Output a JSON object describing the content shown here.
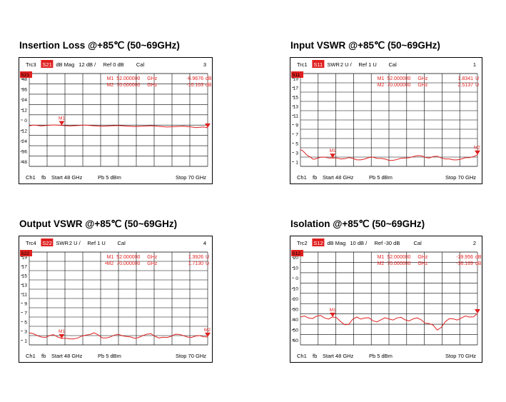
{
  "panels": [
    {
      "title": "Insertion Loss @+85℃ (50~69GHz)",
      "trace": "Trc3",
      "param": "S21",
      "format": "dB Mag",
      "scale": "12 dB /",
      "ref": "Ref 0 dB",
      "cal": "Cal",
      "num": "3",
      "ref_badge": "S21",
      "markers": [
        {
          "label": "M1",
          "freq": "52.000000",
          "unit": "GHz",
          "value": "-6.9676",
          "vunit": "dB"
        },
        {
          "label": "M2",
          "freq": "70.000000",
          "unit": "GHz",
          "value": "-10.103",
          "vunit": "dB"
        }
      ],
      "ticks": [
        "48",
        "36",
        "24",
        "12",
        "0",
        "-12",
        "-24",
        "-36",
        "-48"
      ],
      "footer": {
        "ch": "Ch1",
        "fb": "fb",
        "start": "Start  48 GHz",
        "pb": "Pb   5 dBm",
        "stop": "Stop  70 GHz"
      },
      "marker_flags": [
        "M1"
      ],
      "colors": {
        "trace": "#e02020",
        "badge": "#e02020",
        "grid": "#000000"
      }
    },
    {
      "title": "Input VSWR @+85℃ (50~69GHz)",
      "trace": "Trc1",
      "param": "S11",
      "format": "SWR",
      "scale": "2 U /",
      "ref": "Ref 1 U",
      "cal": "Cal",
      "num": "1",
      "ref_badge": "S11",
      "markers": [
        {
          "label": "M1",
          "freq": "52.000000",
          "unit": "GHz",
          "value": "1.8341",
          "vunit": "U"
        },
        {
          "label": "M2",
          "freq": "70.000000",
          "unit": "GHz",
          "value": "2.5137",
          "vunit": "U"
        }
      ],
      "ticks": [
        "19",
        "17",
        "15",
        "13",
        "11",
        "9",
        "7",
        "5",
        "3",
        "1"
      ],
      "footer": {
        "ch": "Ch1",
        "fb": "fb",
        "start": "Start  48 GHz",
        "pb": "Pb   5 dBm",
        "stop": "Stop  70 GHz"
      },
      "marker_flags": [
        "M1",
        "M2"
      ],
      "colors": {
        "trace": "#e02020",
        "badge": "#e02020",
        "grid": "#000000"
      }
    },
    {
      "title": "Output VSWR @+85℃ (50~69GHz)",
      "trace": "Trc4",
      "param": "S22",
      "format": "SWR",
      "scale": "2 U /",
      "ref": "Ref 1 U",
      "cal": "Cal",
      "num": "4",
      "ref_badge": "S22",
      "markers": [
        {
          "label": "M1",
          "freq": "52.000000",
          "unit": "GHz",
          "value": "1.3926",
          "vunit": "U"
        },
        {
          "label": "•M2",
          "freq": "70.000000",
          "unit": "GHz",
          "value": "1.7130",
          "vunit": "U"
        }
      ],
      "ticks": [
        "19",
        "17",
        "15",
        "13",
        "11",
        "9",
        "7",
        "5",
        "3",
        "1"
      ],
      "footer": {
        "ch": "Ch1",
        "fb": "fb",
        "start": "Start  48 GHz",
        "pb": "Pb   5 dBm",
        "stop": "Stop  70 GHz"
      },
      "marker_flags": [
        "M1",
        "M2"
      ],
      "colors": {
        "trace": "#e02020",
        "badge": "#e02020",
        "grid": "#000000"
      }
    },
    {
      "title": "Isolation @+85℃ (50~69GHz)",
      "trace": "Trc2",
      "param": "S12",
      "format": "dB Mag",
      "scale": "10 dB /",
      "ref": "Ref -30 dB",
      "cal": "Cal",
      "num": "2",
      "ref_badge": "S12",
      "markers": [
        {
          "label": "M1",
          "freq": "52.000000",
          "unit": "GHz",
          "value": "-39.956",
          "vunit": "dB"
        },
        {
          "label": "M2",
          "freq": "70.000000",
          "unit": "GHz",
          "value": "-36.169",
          "vunit": "dB"
        }
      ],
      "ticks": [
        "20",
        "10",
        "0",
        "-10",
        "-20",
        "-30",
        "-40",
        "-50",
        "-60"
      ],
      "footer": {
        "ch": "Ch1",
        "fb": "fb",
        "start": "Start  48 GHz",
        "pb": "Pb   5 dBm",
        "stop": "Stop  70 GHz"
      },
      "marker_flags": [
        "M1"
      ],
      "colors": {
        "trace": "#e02020",
        "badge": "#e02020",
        "grid": "#000000"
      }
    }
  ],
  "chart_data": [
    {
      "type": "line",
      "title": "Insertion Loss @+85℃ (50~69GHz)",
      "xlim": [
        48,
        70
      ],
      "ylim": [
        -60,
        60
      ],
      "grid": true,
      "x": [
        48,
        49,
        50,
        52,
        54,
        56,
        58,
        60,
        62,
        64,
        66,
        68,
        69,
        70
      ],
      "series": [
        {
          "values": [
            -7.5,
            -7.0,
            -7.2,
            -6.97,
            -7.2,
            -7.5,
            -7.6,
            -7.9,
            -8.0,
            -8.3,
            -8.6,
            -9.0,
            -9.5,
            -10.1
          ]
        }
      ],
      "markers": [
        {
          "label": "M1",
          "x": 52,
          "y": -6.9676
        },
        {
          "label": "M2",
          "x": 70,
          "y": -10.103
        }
      ]
    },
    {
      "type": "line",
      "title": "Input VSWR @+85℃ (50~69GHz)",
      "xlim": [
        48,
        70
      ],
      "ylim": [
        0,
        20
      ],
      "grid": true,
      "x": [
        48,
        48.5,
        49,
        49.5,
        50,
        51,
        52,
        53,
        54,
        55,
        56,
        57,
        58,
        59,
        60,
        61,
        62,
        63,
        64,
        65,
        66,
        67,
        68,
        69,
        70
      ],
      "series": [
        {
          "values": [
            3.6,
            3.0,
            2.2,
            1.6,
            1.7,
            2.0,
            1.83,
            1.6,
            1.9,
            1.4,
            1.6,
            2.0,
            1.7,
            1.3,
            1.5,
            1.8,
            2.1,
            2.3,
            1.8,
            2.2,
            1.6,
            1.4,
            1.6,
            1.9,
            2.51
          ]
        }
      ],
      "markers": [
        {
          "label": "M1",
          "x": 52,
          "y": 1.8341
        },
        {
          "label": "M2",
          "x": 70,
          "y": 2.5137
        }
      ]
    },
    {
      "type": "line",
      "title": "Output VSWR @+85℃ (50~69GHz)",
      "xlim": [
        48,
        70
      ],
      "ylim": [
        0,
        20
      ],
      "grid": true,
      "x": [
        48,
        49,
        50,
        51,
        52,
        53,
        54,
        55,
        56,
        57,
        58,
        59,
        60,
        61,
        62,
        63,
        64,
        65,
        66,
        67,
        68,
        69,
        70
      ],
      "series": [
        {
          "values": [
            2.6,
            2.0,
            1.6,
            2.2,
            1.39,
            1.3,
            1.5,
            2.1,
            2.6,
            1.5,
            1.7,
            2.3,
            1.8,
            1.4,
            2.0,
            2.4,
            1.5,
            1.6,
            2.3,
            2.0,
            1.6,
            2.0,
            1.71
          ]
        }
      ],
      "markers": [
        {
          "label": "M1",
          "x": 52,
          "y": 1.3926
        },
        {
          "label": "M2",
          "x": 70,
          "y": 1.713
        }
      ]
    },
    {
      "type": "line",
      "title": "Isolation @+85℃ (50~69GHz)",
      "xlim": [
        48,
        70
      ],
      "ylim": [
        -70,
        30
      ],
      "grid": true,
      "x": [
        48,
        49,
        50,
        51,
        52,
        53,
        54,
        55,
        56,
        57,
        58,
        59,
        60,
        61,
        62,
        63,
        64,
        65,
        66,
        67,
        68,
        69,
        70
      ],
      "series": [
        {
          "values": [
            -40,
            -41,
            -39,
            -41,
            -39.96,
            -45,
            -48,
            -40,
            -41,
            -44,
            -43,
            -42,
            -41,
            -43,
            -42,
            -43,
            -47,
            -54,
            -45,
            -42,
            -41,
            -40,
            -36.2
          ]
        }
      ],
      "markers": [
        {
          "label": "M1",
          "x": 52,
          "y": -39.956
        },
        {
          "label": "M2",
          "x": 70,
          "y": -36.169
        }
      ]
    }
  ]
}
